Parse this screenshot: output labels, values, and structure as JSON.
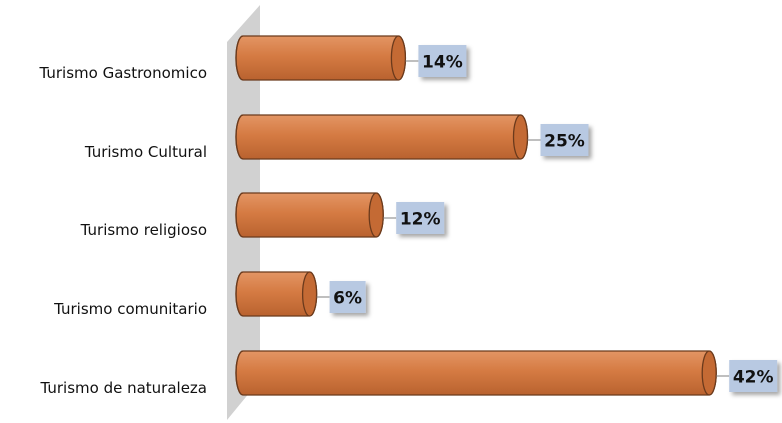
{
  "chart_data": {
    "type": "bar",
    "orientation": "horizontal",
    "style": "3d-cylinder",
    "categories": [
      "Turismo Gastronomico",
      "Turismo Cultural",
      "Turismo religioso",
      "Turismo comunitario",
      "Turismo de naturaleza"
    ],
    "values": [
      14,
      25,
      12,
      6,
      42
    ],
    "value_labels": [
      "14%",
      "25%",
      "12%",
      "6%",
      "42%"
    ],
    "unit": "%",
    "xlim": [
      0,
      42
    ],
    "grid": false,
    "legend": "none",
    "title": "",
    "xlabel": "",
    "ylabel": ""
  },
  "colors": {
    "bar_fill": "#d57b43",
    "bar_edge": "#6b3a1c",
    "label_box": "#b8c9e2",
    "back_wall": "#d1d1d1",
    "leader_line": "#7f7f7f"
  }
}
